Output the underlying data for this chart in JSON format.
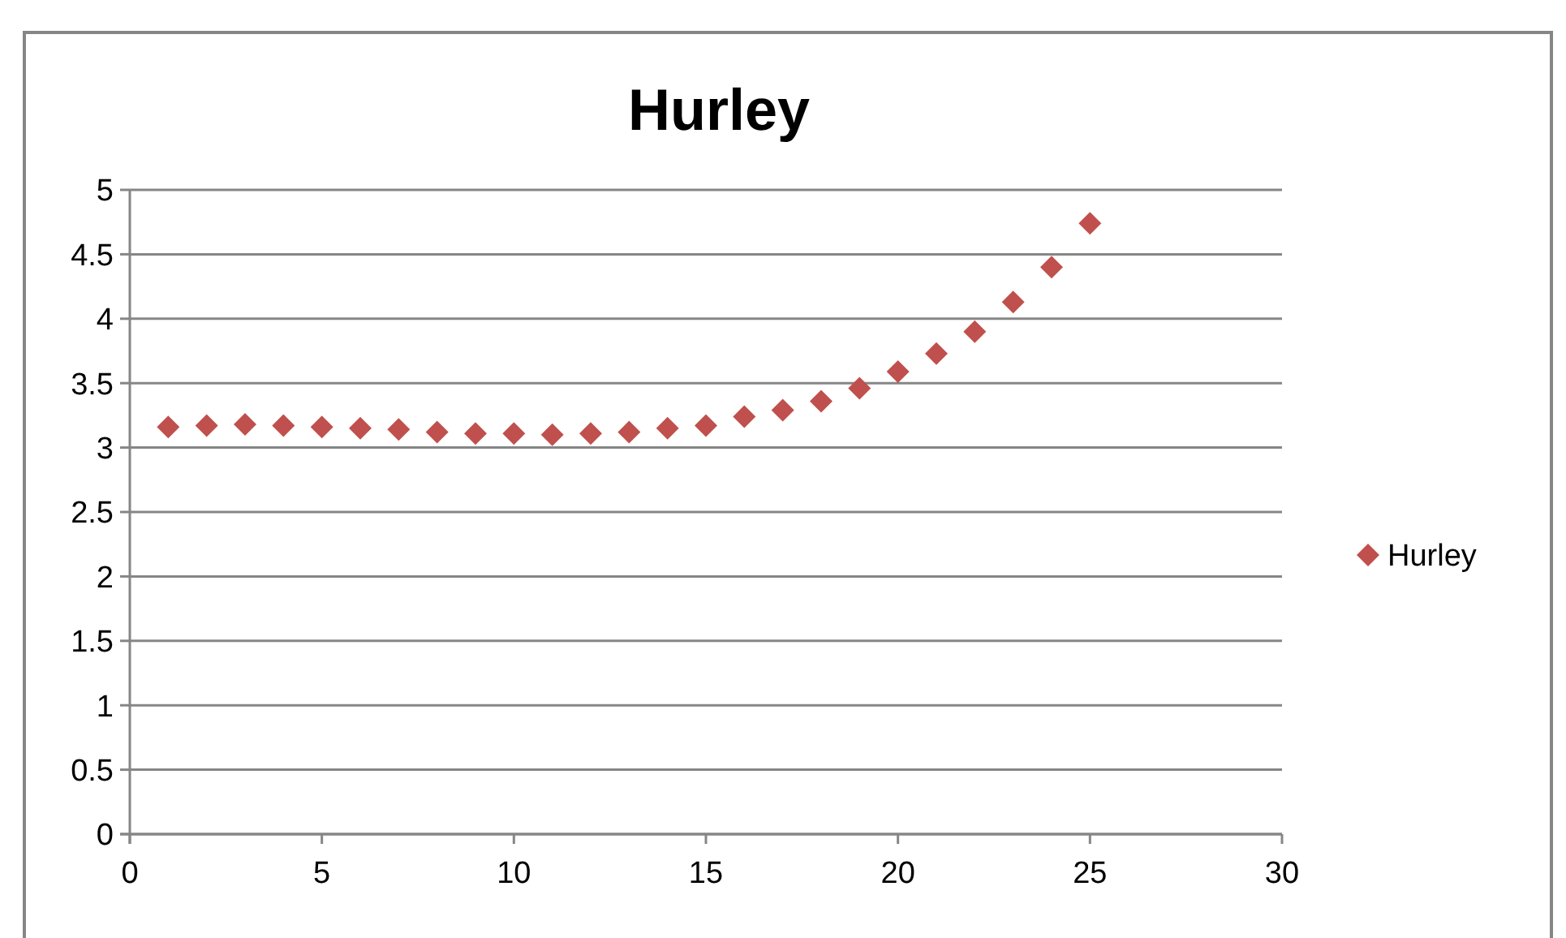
{
  "chart_data": {
    "type": "scatter",
    "title": "Hurley",
    "x": [
      1,
      2,
      3,
      4,
      5,
      6,
      7,
      8,
      9,
      10,
      11,
      12,
      13,
      14,
      15,
      16,
      17,
      18,
      19,
      20,
      21,
      22,
      23,
      24,
      25
    ],
    "series": [
      {
        "name": "Hurley",
        "color": "#c0504d",
        "values": [
          3.16,
          3.17,
          3.18,
          3.17,
          3.16,
          3.15,
          3.14,
          3.12,
          3.11,
          3.11,
          3.1,
          3.11,
          3.12,
          3.15,
          3.17,
          3.24,
          3.29,
          3.36,
          3.46,
          3.59,
          3.73,
          3.9,
          4.13,
          4.4,
          4.74
        ]
      }
    ],
    "xlim": [
      0,
      30
    ],
    "xticks": [
      0,
      5,
      10,
      15,
      20,
      25,
      30
    ],
    "ylim": [
      0,
      5
    ],
    "yticks": [
      0,
      0.5,
      1,
      1.5,
      2,
      2.5,
      3,
      3.5,
      4,
      4.5,
      5
    ],
    "grid": "y",
    "legend": "right",
    "marker": "diamond"
  }
}
